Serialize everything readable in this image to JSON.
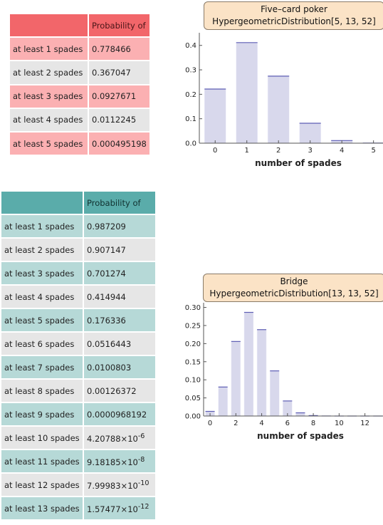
{
  "poker_table": {
    "header": "Probability of",
    "rows": [
      {
        "label": "at least 1 spades",
        "value": "0.778466"
      },
      {
        "label": "at least 2 spades",
        "value": "0.367047"
      },
      {
        "label": "at least 3 spades",
        "value": "0.0927671"
      },
      {
        "label": "at least 4 spades",
        "value": "0.0112245"
      },
      {
        "label": "at least 5 spades",
        "value": "0.000495198"
      }
    ]
  },
  "bridge_table": {
    "header": "Probability of",
    "rows": [
      {
        "label": "at least 1 spades",
        "value": "0.987209"
      },
      {
        "label": "at least 2 spades",
        "value": "0.907147"
      },
      {
        "label": "at least 3 spades",
        "value": "0.701274"
      },
      {
        "label": "at least 4 spades",
        "value": "0.414944"
      },
      {
        "label": "at least 5 spades",
        "value": "0.176336"
      },
      {
        "label": "at least 6 spades",
        "value": "0.0516443"
      },
      {
        "label": "at least 7 spades",
        "value": "0.0100803"
      },
      {
        "label": "at least 8 spades",
        "value": "0.00126372"
      },
      {
        "label": "at least 9 spades",
        "value": "0.0000968192"
      },
      {
        "label": "at least 10 spades",
        "value": "4.20788×10",
        "exp": "-6"
      },
      {
        "label": "at least 11 spades",
        "value": "9.18185×10",
        "exp": "-8"
      },
      {
        "label": "at least 12 spades",
        "value": "7.99983×10",
        "exp": "-10"
      },
      {
        "label": "at least 13 spades",
        "value": "1.57477×10",
        "exp": "-12"
      }
    ]
  },
  "colors": {
    "poker_header": "#f2666a",
    "poker_row": "#fbb0b2",
    "bridge_header": "#5aacaa",
    "bridge_row": "#b6d9d7",
    "neutral_row": "#e6e6e6",
    "bar_fill": "#d8d8ec",
    "bar_top": "#5d5db4",
    "title_box": "#fbe3c6"
  },
  "chart_data": [
    {
      "type": "bar",
      "title": "Five–card poker",
      "subtitle": "HypergeometricDistribution[5, 13, 52]",
      "xlabel": "number of spades",
      "ylabel": "",
      "categories": [
        0,
        1,
        2,
        3,
        4,
        5
      ],
      "values": [
        0.2215,
        0.4114,
        0.2743,
        0.0815,
        0.0107,
        0.0005
      ],
      "xticks": [
        "0",
        "1",
        "2",
        "3",
        "4",
        "5"
      ],
      "yticks": [
        "0.0",
        "0.1",
        "0.2",
        "0.3",
        "0.4"
      ],
      "ytick_values": [
        0,
        0.1,
        0.2,
        0.3,
        0.4
      ],
      "xlim": [
        -0.5,
        5.3
      ],
      "ylim": [
        0,
        0.44
      ],
      "grid": false
    },
    {
      "type": "bar",
      "title": "Bridge",
      "subtitle": "HypergeometricDistribution[13, 13, 52]",
      "xlabel": "number of spades",
      "ylabel": "",
      "categories": [
        0,
        1,
        2,
        3,
        4,
        5,
        6,
        7,
        8,
        9,
        10,
        11,
        12,
        13
      ],
      "values": [
        0.0128,
        0.0801,
        0.2059,
        0.2863,
        0.2386,
        0.1247,
        0.0416,
        0.0088,
        0.0012,
        0.0001,
        0.0,
        0.0,
        0.0,
        0.0
      ],
      "xticks": [
        "0",
        "2",
        "4",
        "6",
        "8",
        "10",
        "12"
      ],
      "xtick_values": [
        0,
        2,
        4,
        6,
        8,
        10,
        12
      ],
      "yticks": [
        "0.00",
        "0.05",
        "0.10",
        "0.15",
        "0.20",
        "0.25",
        "0.30"
      ],
      "ytick_values": [
        0,
        0.05,
        0.1,
        0.15,
        0.2,
        0.25,
        0.3
      ],
      "xlim": [
        -0.5,
        13.4
      ],
      "ylim": [
        0,
        0.305
      ],
      "grid": false
    }
  ]
}
